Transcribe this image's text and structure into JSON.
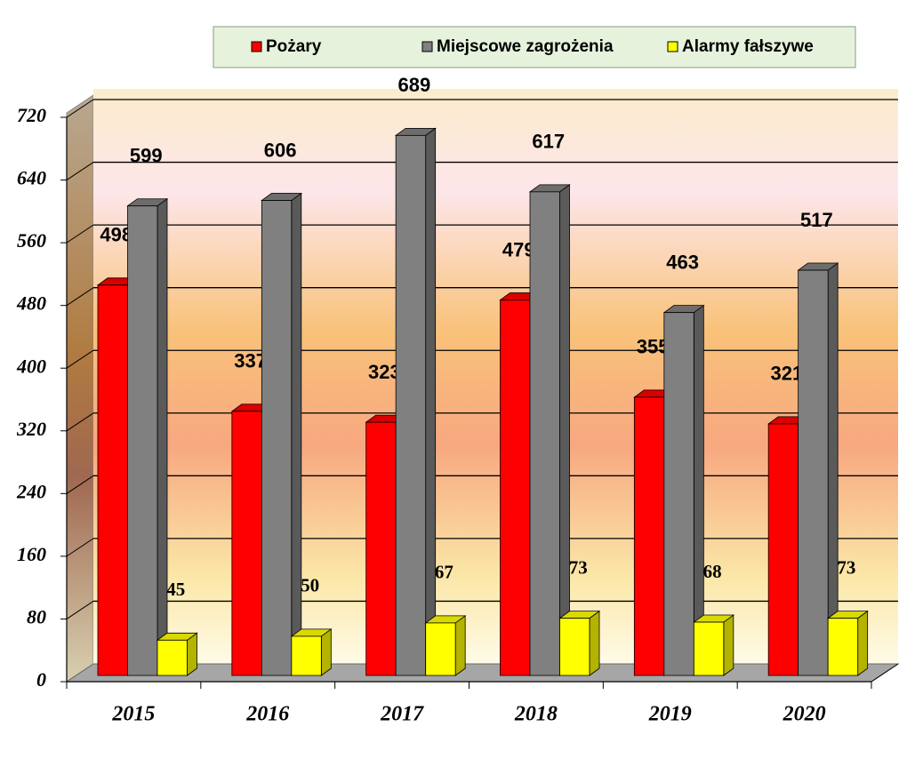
{
  "chart_data": {
    "type": "bar3d",
    "categories": [
      "2015",
      "2016",
      "2017",
      "2018",
      "2019",
      "2020"
    ],
    "series": [
      {
        "name": "Pożary",
        "color": "#ff0000",
        "values": [
          498,
          337,
          323,
          479,
          355,
          321
        ]
      },
      {
        "name": "Miejscowe zagrożenia",
        "color": "#808080",
        "values": [
          599,
          606,
          689,
          617,
          463,
          517
        ]
      },
      {
        "name": "Alarmy fałszywe",
        "color": "#ffff00",
        "values": [
          45,
          50,
          67,
          73,
          68,
          73
        ]
      }
    ],
    "ylim": [
      0,
      720
    ],
    "yticks": [
      0,
      80,
      160,
      240,
      320,
      400,
      480,
      560,
      640,
      720
    ],
    "grid": true,
    "legend": "top"
  }
}
